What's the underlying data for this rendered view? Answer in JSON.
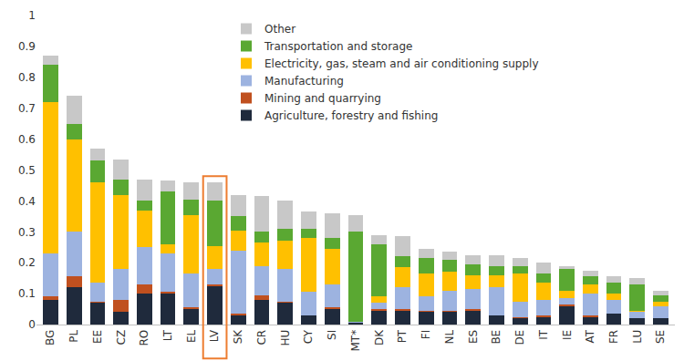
{
  "chart_data": {
    "type": "bar",
    "stacked": true,
    "grid": false,
    "legend": "top",
    "highlight": "LV",
    "categories": [
      "BG",
      "PL",
      "EE",
      "CZ",
      "RO",
      "LT",
      "EL",
      "LV",
      "SK",
      "CR",
      "HU",
      "CY",
      "SI",
      "MT*",
      "DK",
      "PT",
      "FI",
      "NL",
      "ES",
      "BE",
      "DE",
      "IT",
      "IE",
      "AT",
      "FR",
      "LU",
      "SE"
    ],
    "ylim": [
      0,
      1
    ],
    "yticks": [
      0,
      0.1,
      0.2,
      0.3,
      0.4,
      0.5,
      0.6,
      0.7,
      0.8,
      0.9,
      1
    ],
    "series": [
      {
        "name": "Agriculture, forestry and fishing",
        "color": "#1f2a3c",
        "values": [
          0.08,
          0.12,
          0.07,
          0.04,
          0.1,
          0.1,
          0.05,
          0.125,
          0.03,
          0.08,
          0.07,
          0.03,
          0.05,
          0.005,
          0.045,
          0.045,
          0.04,
          0.04,
          0.045,
          0.03,
          0.02,
          0.025,
          0.06,
          0.025,
          0.035,
          0.02,
          0.02
        ]
      },
      {
        "name": "Mining and quarrying",
        "color": "#c0501f",
        "values": [
          0.01,
          0.035,
          0.005,
          0.04,
          0.03,
          0.005,
          0.005,
          0.005,
          0.005,
          0.015,
          0.005,
          0,
          0.005,
          0,
          0.005,
          0.005,
          0.005,
          0.005,
          0.005,
          0,
          0.005,
          0.005,
          0.005,
          0.005,
          0,
          0,
          0
        ]
      },
      {
        "name": "Manufacturing",
        "color": "#9db3e0",
        "values": [
          0.14,
          0.145,
          0.06,
          0.1,
          0.12,
          0.125,
          0.11,
          0.05,
          0.205,
          0.095,
          0.105,
          0.075,
          0.075,
          0.005,
          0.02,
          0.07,
          0.045,
          0.065,
          0.065,
          0.09,
          0.05,
          0.05,
          0.02,
          0.07,
          0.045,
          0.02,
          0.04
        ]
      },
      {
        "name": "Electricity, gas, steam and air conditioning supply",
        "color": "#ffc000",
        "values": [
          0.49,
          0.3,
          0.325,
          0.24,
          0.12,
          0.03,
          0.19,
          0.075,
          0.065,
          0.075,
          0.09,
          0.175,
          0.115,
          0,
          0.02,
          0.065,
          0.075,
          0.06,
          0.045,
          0.04,
          0.09,
          0.055,
          0.025,
          0.03,
          0.02,
          0.005,
          0.015
        ]
      },
      {
        "name": "Transportation and storage",
        "color": "#5aa832",
        "values": [
          0.12,
          0.05,
          0.07,
          0.05,
          0.03,
          0.17,
          0.05,
          0.145,
          0.045,
          0.035,
          0.04,
          0.03,
          0.035,
          0.29,
          0.17,
          0.035,
          0.05,
          0.04,
          0.035,
          0.03,
          0.025,
          0.03,
          0.07,
          0.025,
          0.035,
          0.085,
          0.02
        ]
      },
      {
        "name": "Other",
        "color": "#c8c8c8",
        "values": [
          0.03,
          0.09,
          0.04,
          0.065,
          0.07,
          0.035,
          0.055,
          0.06,
          0.07,
          0.115,
          0.09,
          0.055,
          0.08,
          0.055,
          0.03,
          0.065,
          0.03,
          0.025,
          0.03,
          0.035,
          0.025,
          0.035,
          0.01,
          0.02,
          0.02,
          0.02,
          0.015
        ]
      }
    ]
  }
}
